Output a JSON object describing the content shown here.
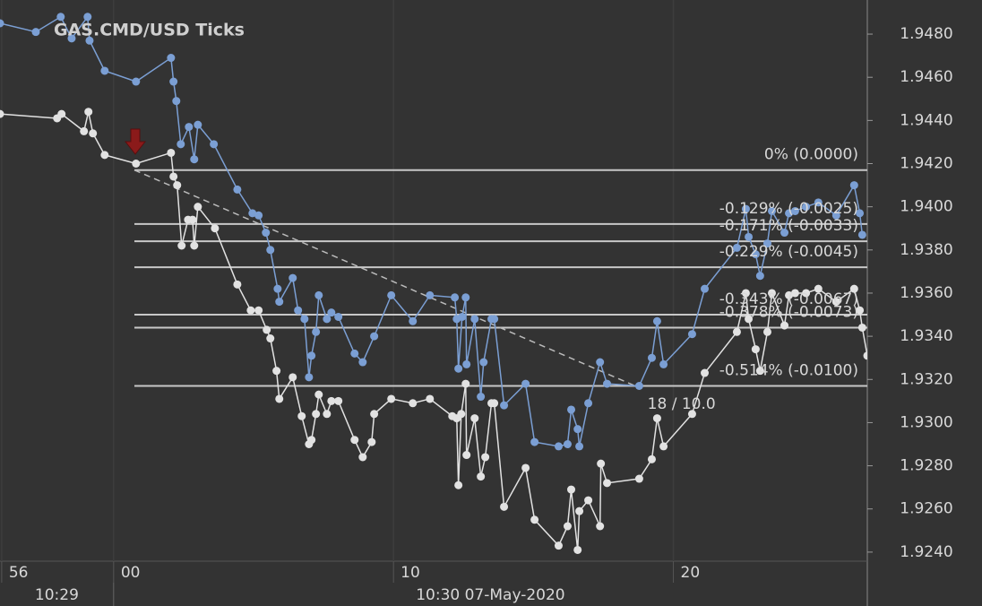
{
  "chart_data": {
    "type": "line",
    "title": "GAS.CMD/USD  Ticks",
    "xlim": [
      -4.06,
      26.93
    ],
    "xticks": [
      {
        "value": -4,
        "label": "56"
      },
      {
        "value": 0,
        "label": "00"
      },
      10,
      20
    ],
    "x_groups": [
      {
        "label": "10:29"
      },
      {
        "label": "10:30 07-May-2020",
        "start": 0
      }
    ],
    "ylim": [
      1.92358,
      1.94958
    ],
    "yticks": [
      {
        "value": 1.924,
        "label": "1.9240"
      },
      {
        "value": 1.926,
        "label": "1.9260"
      },
      {
        "value": 1.928,
        "label": "1.9280"
      },
      {
        "value": 1.93,
        "label": "1.9300"
      },
      {
        "value": 1.932,
        "label": "1.9320"
      },
      {
        "value": 1.934,
        "label": "1.9340"
      },
      {
        "value": 1.936,
        "label": "1.9360"
      },
      {
        "value": 1.938,
        "label": "1.9380"
      },
      {
        "value": 1.94,
        "label": "1.9400"
      },
      {
        "value": 1.942,
        "label": "1.9420"
      },
      {
        "value": 1.944,
        "label": "1.9440"
      },
      {
        "value": 1.946,
        "label": "1.9460"
      },
      {
        "value": 1.948,
        "label": "1.9480"
      }
    ],
    "series": [
      {
        "color": "#7b9fd4",
        "x": [
          -4.06,
          -2.78,
          -1.89,
          -1.5,
          -0.93,
          -0.86,
          -0.32,
          0.8,
          2.05,
          2.14,
          2.24,
          2.4,
          2.69,
          2.88,
          3.01,
          3.58,
          4.42,
          4.96,
          5.18,
          5.44,
          5.6,
          5.86,
          5.92,
          6.4,
          6.59,
          6.82,
          6.98,
          7.07,
          7.23,
          7.33,
          7.62,
          7.78,
          8.03,
          8.61,
          8.9,
          9.31,
          9.92,
          10.69,
          11.3,
          12.19,
          12.26,
          12.32,
          12.45,
          12.58,
          12.61,
          12.9,
          13.12,
          13.22,
          13.5,
          13.6,
          13.95,
          14.72,
          15.04,
          15.9,
          16.22,
          16.35,
          16.58,
          16.64,
          16.96,
          17.38,
          17.63,
          18.78,
          19.23,
          19.42,
          19.65,
          20.67,
          21.12,
          22.27,
          22.59,
          22.69,
          22.94,
          23.1,
          23.36,
          23.52,
          23.97,
          24.13,
          24.35,
          24.74,
          25.18,
          25.82,
          26.46,
          26.66,
          26.75
        ],
        "values": [
          1.9485,
          1.9481,
          1.9488,
          1.9478,
          1.9488,
          1.9477,
          1.9463,
          1.9458,
          1.9469,
          1.9458,
          1.9449,
          1.9429,
          1.9437,
          1.9422,
          1.9438,
          1.9429,
          1.9408,
          1.9397,
          1.9396,
          1.9388,
          1.938,
          1.9362,
          1.9356,
          1.9367,
          1.9352,
          1.9348,
          1.9321,
          1.9331,
          1.9342,
          1.9359,
          1.9348,
          1.9351,
          1.9349,
          1.9332,
          1.9328,
          1.934,
          1.9359,
          1.9347,
          1.9359,
          1.9358,
          1.9348,
          1.9325,
          1.9349,
          1.9358,
          1.9327,
          1.9348,
          1.9312,
          1.9328,
          1.9348,
          1.9348,
          1.9308,
          1.9318,
          1.9291,
          1.9289,
          1.929,
          1.9306,
          1.9297,
          1.9289,
          1.9309,
          1.9328,
          1.9318,
          1.9317,
          1.933,
          1.9347,
          1.9327,
          1.9341,
          1.9362,
          1.9381,
          1.9399,
          1.9386,
          1.9378,
          1.9368,
          1.9383,
          1.9398,
          1.9388,
          1.9397,
          1.9398,
          1.94,
          1.9402,
          1.9396,
          1.941,
          1.9397,
          1.9387
        ]
      },
      {
        "color": "#e2e2e2",
        "x": [
          -4.06,
          -2.02,
          -1.86,
          -1.06,
          -0.9,
          -0.74,
          -0.32,
          0.8,
          2.05,
          2.14,
          2.27,
          2.43,
          2.66,
          2.82,
          2.88,
          3.01,
          3.62,
          4.42,
          4.9,
          5.18,
          5.47,
          5.6,
          5.82,
          5.92,
          6.4,
          6.72,
          6.98,
          7.07,
          7.23,
          7.33,
          7.62,
          7.78,
          8.03,
          8.61,
          8.9,
          9.22,
          9.31,
          9.92,
          10.69,
          11.3,
          12.1,
          12.26,
          12.32,
          12.42,
          12.58,
          12.61,
          12.9,
          13.12,
          13.28,
          13.5,
          13.6,
          13.95,
          14.72,
          15.04,
          15.9,
          16.22,
          16.35,
          16.58,
          16.64,
          16.96,
          17.38,
          17.41,
          17.63,
          18.78,
          19.23,
          19.42,
          19.65,
          20.67,
          21.12,
          22.27,
          22.59,
          22.69,
          22.94,
          23.1,
          23.36,
          23.52,
          23.97,
          24.13,
          24.35,
          24.74,
          25.18,
          25.82,
          26.46,
          26.66,
          26.75,
          26.93
        ],
        "values": [
          1.9443,
          1.9441,
          1.9443,
          1.9435,
          1.9444,
          1.9434,
          1.9424,
          1.942,
          1.9425,
          1.9414,
          1.941,
          1.9382,
          1.9394,
          1.9394,
          1.9382,
          1.94,
          1.939,
          1.9364,
          1.9352,
          1.9352,
          1.9343,
          1.9339,
          1.9324,
          1.9311,
          1.9321,
          1.9303,
          1.929,
          1.9292,
          1.9304,
          1.9313,
          1.9304,
          1.931,
          1.931,
          1.9292,
          1.9284,
          1.9291,
          1.9304,
          1.9311,
          1.9309,
          1.9311,
          1.9303,
          1.9302,
          1.9271,
          1.9304,
          1.9318,
          1.9285,
          1.9302,
          1.9275,
          1.9284,
          1.9309,
          1.9309,
          1.9261,
          1.9279,
          1.9255,
          1.9243,
          1.9252,
          1.9269,
          1.9241,
          1.9259,
          1.9264,
          1.9252,
          1.9281,
          1.9272,
          1.9274,
          1.9283,
          1.9302,
          1.9289,
          1.9304,
          1.9323,
          1.9342,
          1.936,
          1.9348,
          1.9334,
          1.9324,
          1.9342,
          1.936,
          1.9345,
          1.9359,
          1.936,
          1.936,
          1.9362,
          1.9356,
          1.9362,
          1.9352,
          1.9344,
          1.9331
        ]
      }
    ],
    "fib_levels": [
      {
        "value": 1.9417,
        "label": "0% (0.0000)"
      },
      {
        "value": 1.9392,
        "label": "-0.129% (-0.0025)"
      },
      {
        "value": 1.9384,
        "label": "-0.171% (-0.0033)"
      },
      {
        "value": 1.9372,
        "label": "-0.229% (-0.0045)"
      },
      {
        "value": 1.935,
        "label": "-0.343% (-0.0067)"
      },
      {
        "value": 1.9344,
        "label": "-0.378% (-0.0073)"
      },
      {
        "value": 1.9317,
        "label": "-0.514% (-0.0100)"
      }
    ],
    "trendline": {
      "x": [
        0.74,
        18.82
      ],
      "y": [
        1.9417,
        1.9316
      ],
      "label": "18 / 10.0"
    }
  }
}
